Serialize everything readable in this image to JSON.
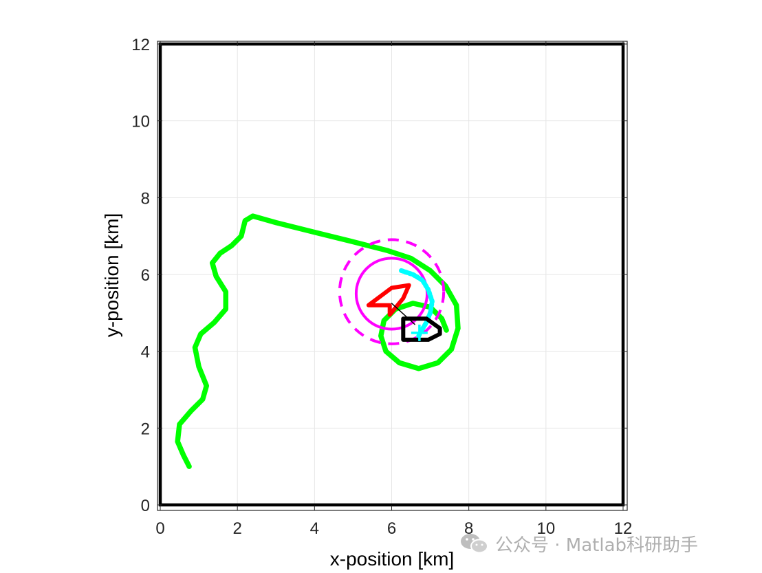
{
  "chart_data": {
    "type": "line",
    "xlabel": "x-position [km]",
    "ylabel": "y-position [km]",
    "xlim": [
      0,
      12
    ],
    "ylim": [
      0,
      12
    ],
    "x_ticks": [
      "0",
      "2",
      "4",
      "6",
      "8",
      "10",
      "12"
    ],
    "y_ticks": [
      "0",
      "2",
      "4",
      "6",
      "8",
      "10",
      "12"
    ],
    "grid": true,
    "series": [
      {
        "color": "#00ff00",
        "line_style": "solid",
        "points": [
          [
            0.75,
            1.0
          ],
          [
            0.6,
            1.3
          ],
          [
            0.45,
            1.65
          ],
          [
            0.5,
            2.1
          ],
          [
            0.8,
            2.45
          ],
          [
            1.1,
            2.75
          ],
          [
            1.2,
            3.1
          ],
          [
            1.0,
            3.6
          ],
          [
            0.9,
            4.1
          ],
          [
            1.05,
            4.45
          ],
          [
            1.4,
            4.75
          ],
          [
            1.7,
            5.1
          ],
          [
            1.7,
            5.55
          ],
          [
            1.45,
            5.95
          ],
          [
            1.35,
            6.3
          ],
          [
            1.55,
            6.55
          ],
          [
            1.85,
            6.75
          ],
          [
            2.1,
            7.0
          ],
          [
            2.2,
            7.4
          ],
          [
            2.4,
            7.52
          ],
          [
            3.0,
            7.35
          ],
          [
            4.0,
            7.1
          ],
          [
            5.0,
            6.85
          ],
          [
            5.9,
            6.62
          ],
          [
            6.5,
            6.42
          ],
          [
            7.0,
            6.1
          ],
          [
            7.4,
            5.7
          ],
          [
            7.68,
            5.2
          ],
          [
            7.72,
            4.6
          ],
          [
            7.55,
            4.05
          ],
          [
            7.2,
            3.7
          ],
          [
            6.7,
            3.55
          ],
          [
            6.2,
            3.7
          ],
          [
            5.85,
            4.0
          ],
          [
            5.72,
            4.4
          ],
          [
            5.8,
            4.8
          ],
          [
            6.1,
            5.1
          ],
          [
            6.55,
            5.25
          ],
          [
            7.0,
            5.15
          ],
          [
            7.3,
            4.85
          ],
          [
            7.42,
            4.55
          ]
        ]
      },
      {
        "color": "#ff00ff",
        "line_style": "solid",
        "shape": "circle",
        "center": [
          6.0,
          5.5
        ],
        "radius": 0.92
      },
      {
        "color": "#ff00ff",
        "line_style": "dashed",
        "shape": "circle",
        "center": [
          6.0,
          5.55
        ],
        "radius": 1.35
      },
      {
        "color": "#00ffff",
        "line_style": "dotted",
        "points": [
          [
            6.25,
            6.1
          ],
          [
            6.55,
            6.0
          ],
          [
            6.8,
            5.85
          ],
          [
            6.95,
            5.6
          ],
          [
            7.05,
            5.3
          ],
          [
            7.0,
            5.0
          ],
          [
            6.9,
            4.75
          ],
          [
            6.78,
            4.55
          ],
          [
            6.7,
            4.4
          ]
        ]
      },
      {
        "color": "#ff0000",
        "line_style": "solid",
        "shape": "polygon",
        "points": [
          [
            5.4,
            5.2
          ],
          [
            6.0,
            5.65
          ],
          [
            6.45,
            5.72
          ],
          [
            6.3,
            5.38
          ],
          [
            5.95,
            4.95
          ],
          [
            5.95,
            5.2
          ]
        ]
      },
      {
        "color": "#000000",
        "line_style": "solid",
        "shape": "polygon",
        "points": [
          [
            6.3,
            4.3
          ],
          [
            6.3,
            4.85
          ],
          [
            6.9,
            4.85
          ],
          [
            7.25,
            4.6
          ],
          [
            7.25,
            4.45
          ],
          [
            6.95,
            4.3
          ]
        ]
      },
      {
        "color": "#000000",
        "line_style": "solid",
        "points": [
          [
            6.0,
            5.25
          ],
          [
            6.6,
            4.7
          ]
        ]
      },
      {
        "color": "#00ffff",
        "line_style": "solid",
        "marker": "plus",
        "points": [
          [
            6.72,
            4.48
          ]
        ]
      }
    ]
  },
  "watermark": {
    "text": "公众号 · Matlab科研助手"
  }
}
